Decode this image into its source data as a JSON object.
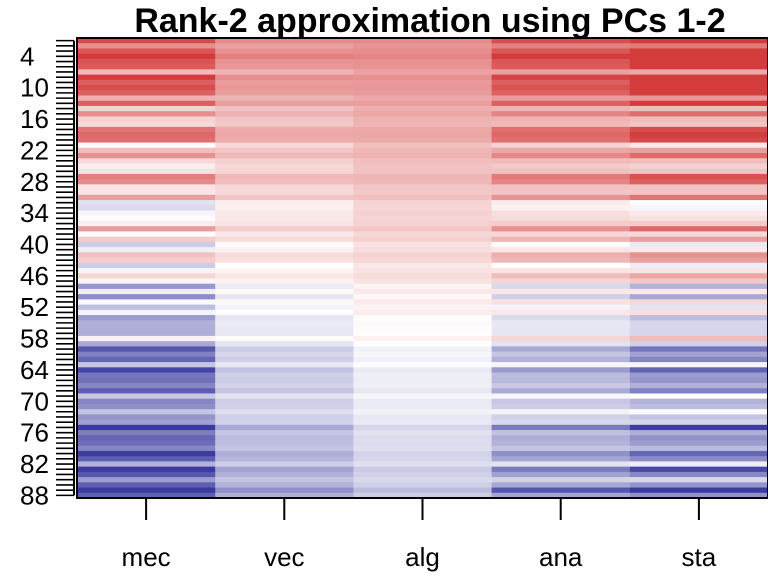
{
  "chart_data": {
    "type": "heatmap",
    "title": "Rank-2 approximation using PCs 1-2",
    "xlabel": "",
    "ylabel": "",
    "columns": [
      "mec",
      "vec",
      "alg",
      "ana",
      "sta"
    ],
    "row_count": 88,
    "y_tick_labels": [
      "4",
      "10",
      "16",
      "22",
      "28",
      "34",
      "40",
      "46",
      "52",
      "58",
      "64",
      "70",
      "76",
      "82",
      "88"
    ],
    "color_scale": {
      "low": "#3a3aa0",
      "mid": "#ffffff",
      "high": "#d43c3c"
    },
    "values_range": [
      -1,
      1
    ],
    "column_profiles": {
      "mec": {
        "start": 0.78,
        "end": -0.95,
        "noise": 0.48
      },
      "vec": {
        "start": 0.55,
        "end": -0.45,
        "noise": 0.14
      },
      "alg": {
        "start": 0.58,
        "end": -0.28,
        "noise": 0.07
      },
      "ana": {
        "start": 0.8,
        "end": -0.55,
        "noise": 0.34
      },
      "sta": {
        "start": 0.92,
        "end": -0.7,
        "noise": 0.55
      }
    }
  }
}
